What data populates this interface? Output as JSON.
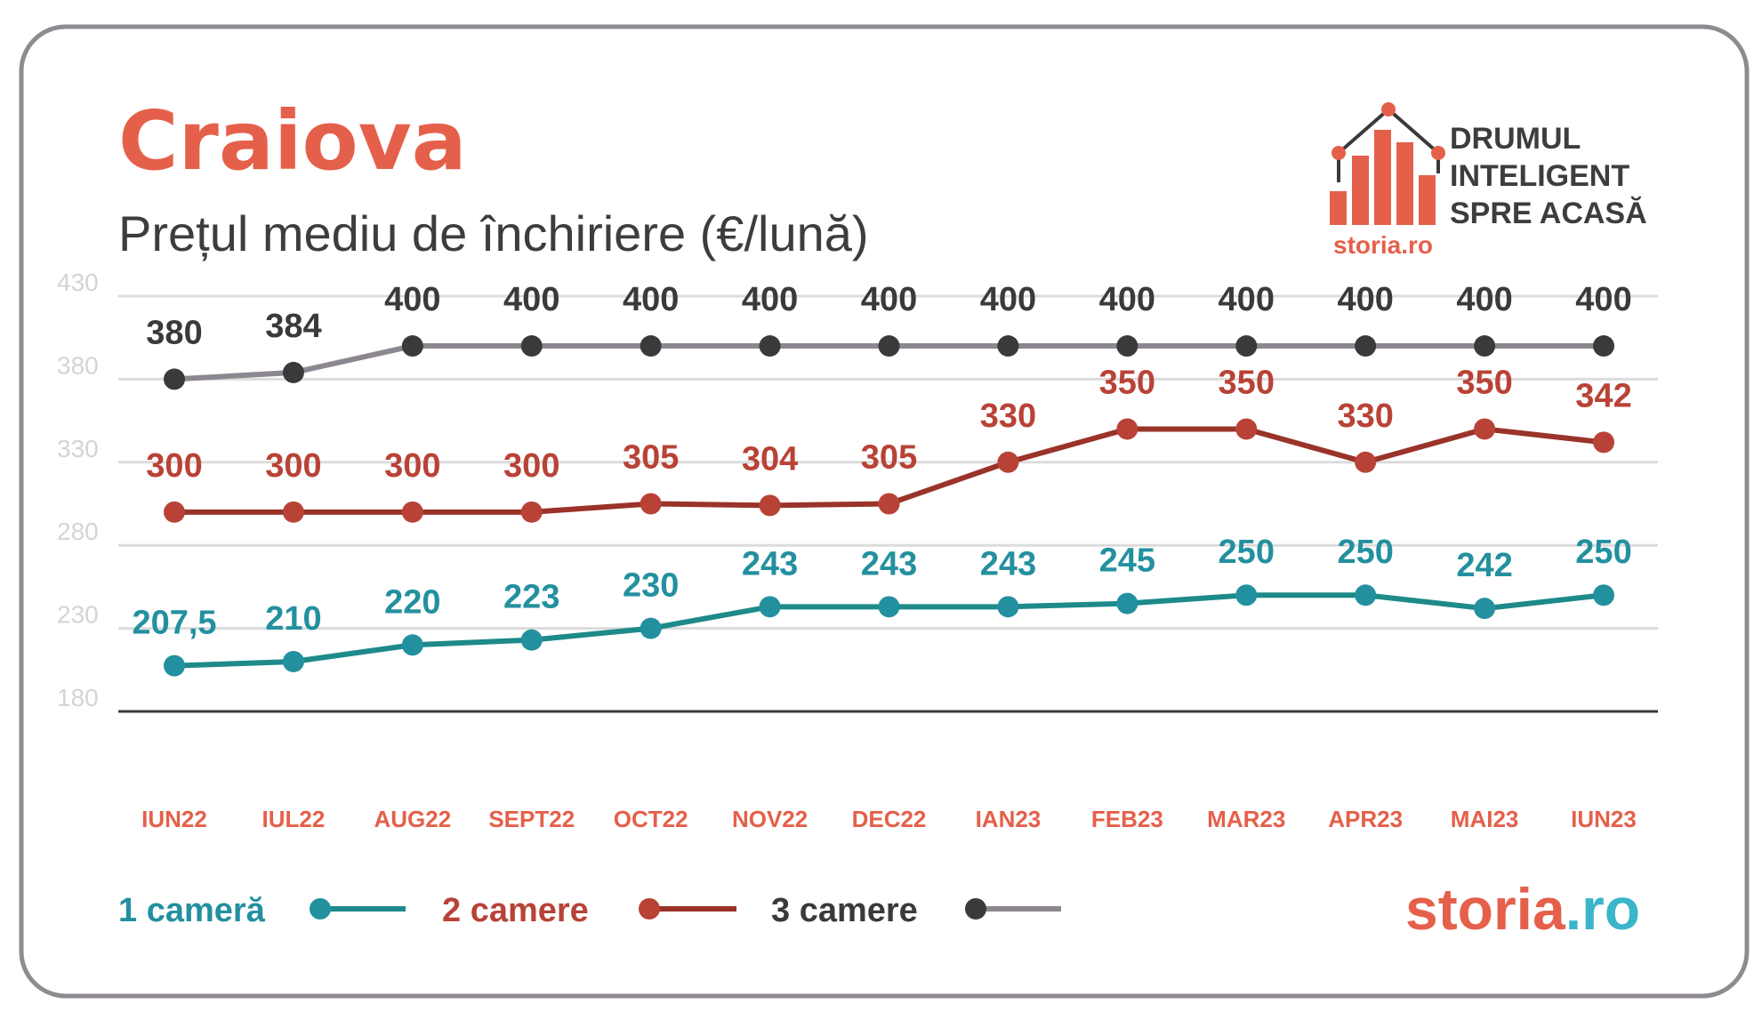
{
  "title": "Craiova",
  "subtitle": "Prețul mediu de închiriere (€/lună)",
  "brand": {
    "tagline": [
      "DRUMUL",
      "INTELIGENT",
      "SPRE ACASĂ"
    ],
    "logo_small": "storia.ro",
    "logo_large_a": "storia",
    "logo_large_b": ".ro",
    "coral": "#e5604a",
    "teal": "#3bb5c9"
  },
  "chart_data": {
    "type": "line",
    "title": "Prețul mediu de închiriere (€/lună)",
    "xlabel": "",
    "ylabel": "",
    "ylim": [
      180,
      430
    ],
    "yticks": [
      430,
      380,
      330,
      280,
      230,
      180
    ],
    "grid": true,
    "legend": "bottom-left",
    "categories": [
      "IUN22",
      "IUL22",
      "AUG22",
      "SEPT22",
      "OCT22",
      "NOV22",
      "DEC22",
      "IAN23",
      "FEB23",
      "MAR23",
      "APR23",
      "MAI23",
      "IUN23"
    ],
    "series": [
      {
        "name": "1 cameră",
        "line_color": "#1e8a8a",
        "dot_color": "#23909f",
        "label_color": "#23909f",
        "values": [
          207.5,
          210,
          220,
          223,
          230,
          243,
          243,
          243,
          245,
          250,
          250,
          242,
          250
        ],
        "labels": [
          "207,5",
          "210",
          "220",
          "223",
          "230",
          "243",
          "243",
          "243",
          "245",
          "250",
          "250",
          "242",
          "250"
        ]
      },
      {
        "name": "2 camere",
        "line_color": "#9a3329",
        "dot_color": "#b94236",
        "label_color": "#b94236",
        "values": [
          300,
          300,
          300,
          300,
          305,
          304,
          305,
          330,
          350,
          350,
          330,
          350,
          342
        ],
        "labels": [
          "300",
          "300",
          "300",
          "300",
          "305",
          "304",
          "305",
          "330",
          "350",
          "350",
          "330",
          "350",
          "342"
        ]
      },
      {
        "name": "3 camere",
        "line_color": "#8d8790",
        "dot_color": "#3a3a3a",
        "label_color": "#3a3a3a",
        "values": [
          380,
          384,
          400,
          400,
          400,
          400,
          400,
          400,
          400,
          400,
          400,
          400,
          400
        ],
        "labels": [
          "380",
          "384",
          "400",
          "400",
          "400",
          "400",
          "400",
          "400",
          "400",
          "400",
          "400",
          "400",
          "400"
        ]
      }
    ]
  }
}
